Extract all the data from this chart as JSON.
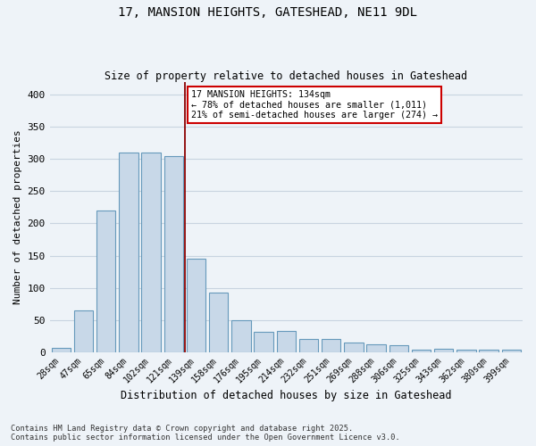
{
  "title_line1": "17, MANSION HEIGHTS, GATESHEAD, NE11 9DL",
  "title_line2": "Size of property relative to detached houses in Gateshead",
  "xlabel": "Distribution of detached houses by size in Gateshead",
  "ylabel": "Number of detached properties",
  "bar_labels": [
    "28sqm",
    "47sqm",
    "65sqm",
    "84sqm",
    "102sqm",
    "121sqm",
    "139sqm",
    "158sqm",
    "176sqm",
    "195sqm",
    "214sqm",
    "232sqm",
    "251sqm",
    "269sqm",
    "288sqm",
    "306sqm",
    "325sqm",
    "343sqm",
    "362sqm",
    "380sqm",
    "399sqm"
  ],
  "bar_values": [
    7,
    65,
    220,
    310,
    310,
    305,
    145,
    93,
    50,
    32,
    33,
    20,
    20,
    15,
    12,
    10,
    4,
    5,
    3,
    3,
    4
  ],
  "bar_color": "#c8d8e8",
  "bar_edge_color": "#6699bb",
  "vline_x": 5.5,
  "vline_color": "#8b0000",
  "annotation_line1": "17 MANSION HEIGHTS: 134sqm",
  "annotation_line2": "← 78% of detached houses are smaller (1,011)",
  "annotation_line3": "21% of semi-detached houses are larger (274) →",
  "annotation_box_color": "#ffffff",
  "annotation_box_edge_color": "#cc0000",
  "grid_color": "#c8d4e0",
  "background_color": "#eef3f8",
  "footer_line1": "Contains HM Land Registry data © Crown copyright and database right 2025.",
  "footer_line2": "Contains public sector information licensed under the Open Government Licence v3.0.",
  "ylim": [
    0,
    420
  ],
  "yticks": [
    0,
    50,
    100,
    150,
    200,
    250,
    300,
    350,
    400
  ]
}
